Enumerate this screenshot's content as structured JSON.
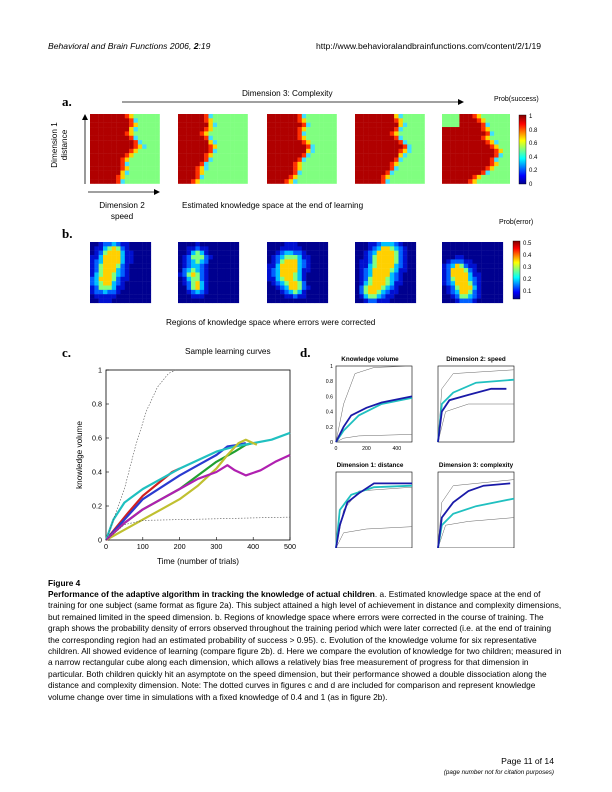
{
  "header": {
    "journal": "Behavioral and Brain Functions",
    "year_volume": "2006,",
    "volume_num": "2",
    "article": ":19",
    "url": "http://www.behavioralandbrainfunctions.com/content/2/1/19"
  },
  "panel_a": {
    "label": "a.",
    "arrow_label": "Dimension 3: Complexity",
    "y_axis_label_line1": "Dimension 1",
    "y_axis_label_line2": "distance",
    "x_axis_label_line1": "Dimension 2",
    "x_axis_label_line2": "speed",
    "subtitle": "Estimated knowledge space at the end of learning",
    "colorbar_title": "Prob(success)",
    "colorbar_ticks": [
      "1",
      "0.8",
      "0.6",
      "0.4",
      "0.2",
      "0"
    ]
  },
  "panel_b": {
    "label": "b.",
    "colorbar_title": "Prob(error)",
    "colorbar_ticks": [
      "0.5",
      "0.4",
      "0.3",
      "0.2",
      "0.1"
    ],
    "subtitle": "Regions of knowledge space where errors were corrected"
  },
  "panel_c": {
    "label": "c."
  },
  "panel_d": {
    "label": "d.",
    "subplot_titles": [
      "Knowledge volume",
      "Dimension 2: speed",
      "Dimension 1: distance",
      "Dimension 3: complexity"
    ],
    "y_ticks": [
      "0",
      "0.2",
      "0.4",
      "0.6",
      "0.8",
      "1"
    ],
    "x_ticks": [
      "0",
      "200",
      "400"
    ]
  },
  "chart_data": {
    "type": "line",
    "title": "Sample learning curves",
    "xlabel": "Time (number of trials)",
    "ylabel": "knowledge volume",
    "xlim": [
      0,
      500
    ],
    "ylim": [
      0,
      1
    ],
    "x_ticks": [
      "0",
      "100",
      "200",
      "300",
      "400",
      "500"
    ],
    "y_ticks": [
      "0",
      "0.2",
      "0.4",
      "0.6",
      "0.8",
      "1"
    ],
    "series": [
      {
        "color": "#d02020",
        "points": [
          [
            0,
            0
          ],
          [
            30,
            0.08
          ],
          [
            60,
            0.16
          ],
          [
            100,
            0.26
          ],
          [
            140,
            0.33
          ],
          [
            180,
            0.4
          ],
          [
            200,
            0.42
          ]
        ]
      },
      {
        "color": "#2a3ad0",
        "points": [
          [
            0,
            0
          ],
          [
            50,
            0.12
          ],
          [
            100,
            0.24
          ],
          [
            150,
            0.31
          ],
          [
            200,
            0.38
          ],
          [
            250,
            0.44
          ],
          [
            300,
            0.5
          ],
          [
            330,
            0.55
          ],
          [
            360,
            0.56
          ],
          [
            380,
            0.57
          ]
        ]
      },
      {
        "color": "#20a030",
        "points": [
          [
            0,
            0
          ],
          [
            50,
            0.1
          ],
          [
            100,
            0.18
          ],
          [
            150,
            0.24
          ],
          [
            200,
            0.3
          ],
          [
            250,
            0.38
          ],
          [
            300,
            0.46
          ],
          [
            350,
            0.52
          ],
          [
            380,
            0.56
          ],
          [
            400,
            0.57
          ]
        ]
      },
      {
        "color": "#20c0c0",
        "points": [
          [
            0,
            0
          ],
          [
            20,
            0.12
          ],
          [
            50,
            0.22
          ],
          [
            100,
            0.3
          ],
          [
            150,
            0.36
          ],
          [
            200,
            0.42
          ],
          [
            250,
            0.47
          ],
          [
            300,
            0.52
          ],
          [
            350,
            0.55
          ],
          [
            400,
            0.57
          ],
          [
            450,
            0.59
          ],
          [
            500,
            0.63
          ]
        ]
      },
      {
        "color": "#c0c030",
        "points": [
          [
            0,
            0
          ],
          [
            50,
            0.06
          ],
          [
            100,
            0.12
          ],
          [
            150,
            0.18
          ],
          [
            200,
            0.24
          ],
          [
            250,
            0.32
          ],
          [
            300,
            0.42
          ],
          [
            330,
            0.5
          ],
          [
            360,
            0.57
          ],
          [
            380,
            0.59
          ],
          [
            410,
            0.56
          ]
        ]
      },
      {
        "color": "#b020b0",
        "points": [
          [
            0,
            0
          ],
          [
            50,
            0.1
          ],
          [
            100,
            0.18
          ],
          [
            150,
            0.24
          ],
          [
            200,
            0.3
          ],
          [
            250,
            0.36
          ],
          [
            300,
            0.4
          ],
          [
            330,
            0.44
          ],
          [
            350,
            0.41
          ],
          [
            380,
            0.38
          ],
          [
            420,
            0.41
          ],
          [
            460,
            0.46
          ],
          [
            500,
            0.5
          ]
        ]
      },
      {
        "color": "#555555",
        "dashed": true,
        "points": [
          [
            0,
            0
          ],
          [
            50,
            0.3
          ],
          [
            80,
            0.55
          ],
          [
            110,
            0.76
          ],
          [
            140,
            0.9
          ],
          [
            170,
            0.98
          ],
          [
            190,
            1.0
          ]
        ]
      },
      {
        "color": "#555555",
        "dashed": true,
        "points": [
          [
            0,
            0
          ],
          [
            50,
            0.09
          ],
          [
            100,
            0.115
          ],
          [
            200,
            0.12
          ],
          [
            300,
            0.125
          ],
          [
            400,
            0.13
          ],
          [
            500,
            0.135
          ]
        ]
      }
    ]
  },
  "caption": {
    "figure_label": "Figure 4",
    "title": "Performance of the adaptive algorithm in tracking the knowledge of actual children",
    "body": ". a. Estimated knowledge space at the end of training for one subject (same format as figure 2a). This subject attained a high level of achievement in distance and complexity dimensions, but remained limited in the speed dimension. b. Regions of knowledge space where errors were corrected in the course of training. The graph shows the probability density of errors observed throughout the training period which were later corrected (i.e. at the end of training the corresponding region had an estimated probability of success > 0.95). c. Evolution of the knowledge volume for six representative children. All showed evidence of learning (compare figure 2b). d. Here we compare the evolution of knowledge for two children; measured in a narrow rectangular cube along each dimension, which allows a relatively bias free measurement of progress for that dimension in particular. Both children quickly hit an asymptote on the speed dimension, but their performance showed a double dissociation along the distance and complexity dimension. Note: The dotted curves in figures c and d are included for comparison and represent knowledge volume change over time in simulations with a fixed knowledge of 0.4 and 1 (as in figure 2b)."
  },
  "footer": {
    "page": "Page 11 of 14",
    "note": "(page number not for citation purposes)"
  }
}
